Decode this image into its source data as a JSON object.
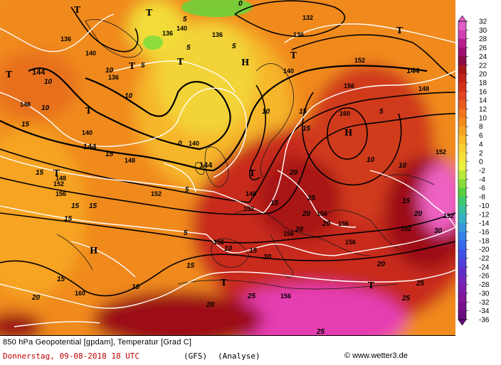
{
  "map": {
    "colors": {
      "warm_orange": "#f08a1c",
      "light_orange": "#f6b62a",
      "yellow": "#f2dc38",
      "red": "#c82a1c",
      "dark_red": "#9c1018",
      "magenta": "#e63cb2",
      "pink": "#ee62c2",
      "green": "#6ed23c"
    },
    "geopotential_labels": [
      "136",
      "140",
      "140",
      "136",
      "136",
      "136",
      "136",
      "132",
      "140",
      "152",
      "144",
      "144",
      "148",
      "148",
      "140",
      "144",
      "144",
      "148",
      "152",
      "156",
      "148",
      "152",
      "152",
      "156",
      "160",
      "156",
      "156",
      "156",
      "152",
      "152",
      "156",
      "156",
      "160",
      "148",
      "152",
      "140",
      "156"
    ],
    "temperature_labels": [
      "5",
      "5",
      "5",
      "5",
      "5",
      "5",
      "10",
      "10",
      "10",
      "10",
      "10",
      "10",
      "10",
      "15",
      "15",
      "15",
      "15",
      "15",
      "15",
      "15",
      "15",
      "15",
      "20",
      "20",
      "20",
      "20",
      "20",
      "20",
      "20",
      "20",
      "25",
      "25",
      "25",
      "25",
      "25",
      "30",
      "10",
      "0",
      "0",
      "5",
      "10",
      "15",
      "15",
      "20",
      "15",
      "15"
    ],
    "pressure_centers": [
      "T",
      "T",
      "T",
      "T",
      "T",
      "H",
      "T",
      "T",
      "H",
      "H",
      "T",
      "T",
      "T",
      "T",
      "T"
    ]
  },
  "legend": {
    "values": [
      "32",
      "30",
      "28",
      "26",
      "24",
      "22",
      "20",
      "18",
      "16",
      "14",
      "12",
      "10",
      "8",
      "6",
      "4",
      "2",
      "0",
      "-2",
      "-4",
      "-6",
      "-8",
      "-10",
      "-12",
      "-14",
      "-16",
      "-18",
      "-20",
      "-22",
      "-24",
      "-26",
      "-28",
      "-30",
      "-32",
      "-34",
      "-36"
    ],
    "colors": [
      "#e060c8",
      "#d040b0",
      "#b8208c",
      "#a01070",
      "#8c0c44",
      "#a81818",
      "#c02418",
      "#d4321c",
      "#e04420",
      "#ea5c1e",
      "#f0741e",
      "#f48c1e",
      "#f6a424",
      "#f8ba2c",
      "#f8d034",
      "#f4e23c",
      "#e8f040",
      "#b8e83c",
      "#88dc3c",
      "#58d040",
      "#40c870",
      "#38c0a0",
      "#38b0c8",
      "#3898dc",
      "#3880e8",
      "#3868ec",
      "#4050e8",
      "#5040dc",
      "#6030cc",
      "#7028bc",
      "#7c20ac",
      "#80189c",
      "#78108c",
      "#680c7c"
    ]
  },
  "footer": {
    "title": "850 hPa Geopotential [gpdam], Temperatur [Grad C]",
    "date": "Donnerstag, 09-08-2018  18 UTC",
    "model": "(GFS)",
    "analysis": "(Analyse)",
    "credit": "© www.wetter3.de"
  }
}
